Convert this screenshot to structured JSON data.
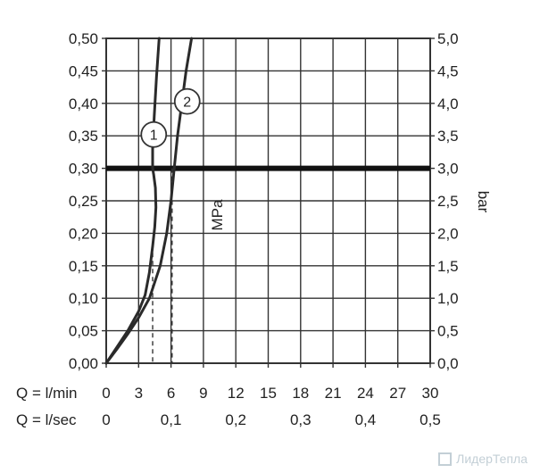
{
  "chart_data": {
    "type": "line",
    "x_label": "Q = l/min",
    "x2_label": "Q = l/sec",
    "y_label": "MPa",
    "y2_label": "bar",
    "x_ticks": [
      "0",
      "3",
      "6",
      "9",
      "12",
      "15",
      "18",
      "21",
      "24",
      "27",
      "30"
    ],
    "x2_ticks": [
      {
        "x": 0,
        "label": "0"
      },
      {
        "x": 6,
        "label": "0,1"
      },
      {
        "x": 12,
        "label": "0,2"
      },
      {
        "x": 18,
        "label": "0,3"
      },
      {
        "x": 24,
        "label": "0,4"
      },
      {
        "x": 30,
        "label": "0,5"
      }
    ],
    "y_ticks": [
      "0,00",
      "0,05",
      "0,10",
      "0,15",
      "0,20",
      "0,25",
      "0,30",
      "0,35",
      "0,40",
      "0,45",
      "0,50"
    ],
    "y2_ticks": [
      "0,0",
      "0,5",
      "1,0",
      "1,5",
      "2,0",
      "2,5",
      "3,0",
      "3,5",
      "4,0",
      "4,5",
      "5,0"
    ],
    "xlim": [
      0,
      30
    ],
    "ylim": [
      0,
      0.5
    ],
    "grid": true,
    "reference_line": {
      "y": 0.3
    },
    "dashed_markers": [
      {
        "x": 4.3,
        "y_top": 0.17
      },
      {
        "x": 6.1,
        "y_top": 0.3
      }
    ],
    "series": [
      {
        "marker": "1",
        "points": [
          [
            0,
            0
          ],
          [
            1,
            0.025
          ],
          [
            2,
            0.05
          ],
          [
            3,
            0.08
          ],
          [
            3.6,
            0.105
          ],
          [
            4.0,
            0.14
          ],
          [
            4.3,
            0.18
          ],
          [
            4.5,
            0.21
          ],
          [
            4.6,
            0.24
          ],
          [
            4.55,
            0.27
          ],
          [
            4.4,
            0.29
          ],
          [
            4.3,
            0.3
          ],
          [
            4.3,
            0.33
          ],
          [
            4.45,
            0.38
          ],
          [
            4.65,
            0.44
          ],
          [
            4.9,
            0.5
          ]
        ],
        "marker_at": [
          4.4,
          0.352
        ]
      },
      {
        "marker": "2",
        "points": [
          [
            0,
            0
          ],
          [
            1,
            0.022
          ],
          [
            2,
            0.045
          ],
          [
            3,
            0.07
          ],
          [
            4,
            0.1
          ],
          [
            5,
            0.15
          ],
          [
            5.6,
            0.2
          ],
          [
            6.0,
            0.25
          ],
          [
            6.3,
            0.3
          ],
          [
            6.6,
            0.35
          ],
          [
            7.0,
            0.4
          ],
          [
            7.4,
            0.45
          ],
          [
            7.9,
            0.5
          ]
        ],
        "marker_at": [
          7.5,
          0.403
        ]
      }
    ]
  },
  "watermark": {
    "text": "ЛидерТепла"
  }
}
